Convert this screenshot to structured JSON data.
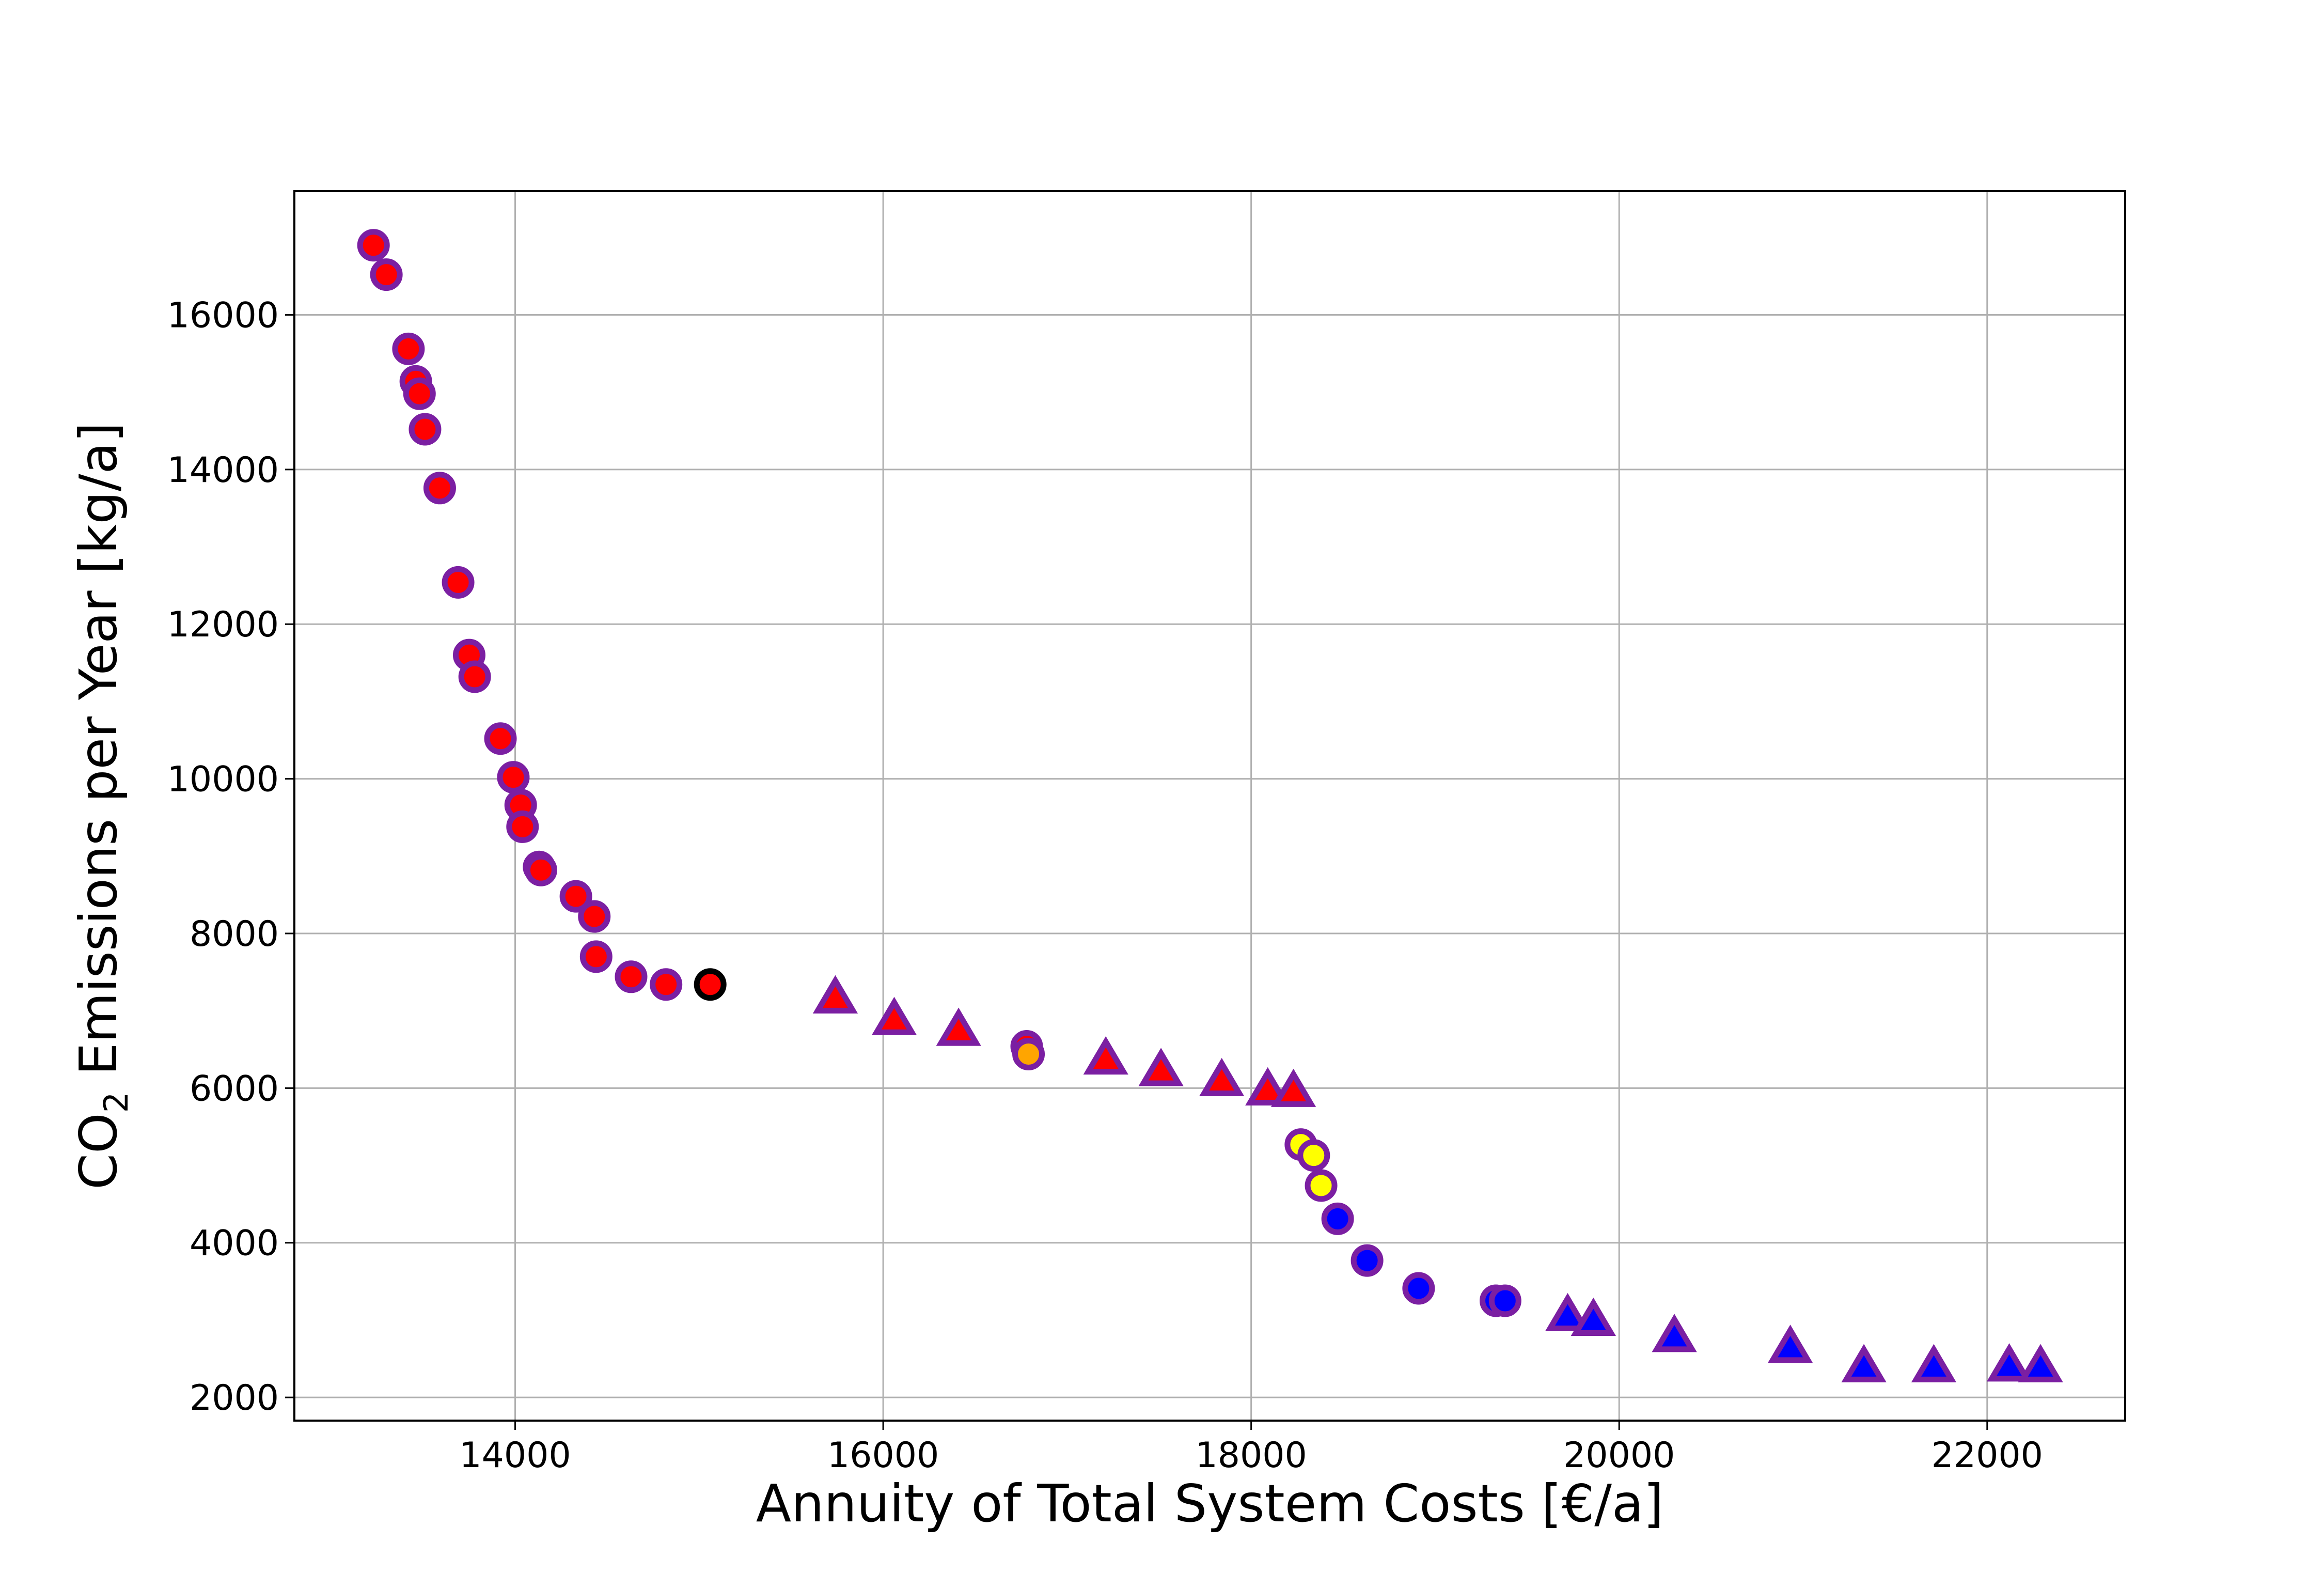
{
  "chart_data": {
    "type": "scatter",
    "xlabel": "Annuity of Total System Costs  [€/a]",
    "ylabel": {
      "prefix": "CO",
      "subscript": "2",
      "suffix": " Emissions per Year [kg/a]"
    },
    "xlim": [
      12800,
      22750
    ],
    "ylim": [
      1700,
      17600
    ],
    "xticks": [
      "14000",
      "16000",
      "18000",
      "20000",
      "22000"
    ],
    "yticks": [
      "2000",
      "4000",
      "6000",
      "8000",
      "10000",
      "12000",
      "14000",
      "16000"
    ],
    "grid": true,
    "edge_color": "#7b1fa2",
    "series": [
      {
        "marker": "circle",
        "fill": "#ff0000",
        "points": [
          [
            13230,
            16900
          ],
          [
            13300,
            16520
          ],
          [
            13420,
            15560
          ],
          [
            13460,
            15140
          ],
          [
            13480,
            14980
          ],
          [
            13510,
            14520
          ],
          [
            13590,
            13760
          ],
          [
            13690,
            12540
          ],
          [
            13750,
            11600
          ],
          [
            13780,
            11320
          ],
          [
            13920,
            10520
          ],
          [
            13990,
            10020
          ],
          [
            14030,
            9660
          ],
          [
            14040,
            9380
          ],
          [
            14130,
            8860
          ],
          [
            14140,
            8820
          ],
          [
            14330,
            8480
          ],
          [
            14430,
            8220
          ],
          [
            14440,
            7700
          ],
          [
            14630,
            7440
          ],
          [
            14820,
            7340
          ]
        ]
      },
      {
        "marker": "circle",
        "fill": "#ff0000",
        "edge": "#000000",
        "points": [
          [
            15060,
            7340
          ]
        ]
      },
      {
        "marker": "triangle",
        "fill": "#ff0000",
        "points": [
          [
            15740,
            7150
          ],
          [
            16060,
            6870
          ],
          [
            16410,
            6730
          ],
          [
            17210,
            6360
          ],
          [
            17510,
            6210
          ],
          [
            17840,
            6080
          ],
          [
            18090,
            5960
          ],
          [
            18230,
            5940
          ]
        ]
      },
      {
        "marker": "circle",
        "fill": "#ff0000",
        "points": [
          [
            16780,
            6540
          ]
        ]
      },
      {
        "marker": "circle",
        "fill": "#ffa500",
        "points": [
          [
            16790,
            6440
          ]
        ]
      },
      {
        "marker": "circle",
        "fill": "#ffff00",
        "points": [
          [
            18270,
            5270
          ],
          [
            18340,
            5130
          ],
          [
            18380,
            4740
          ]
        ]
      },
      {
        "marker": "circle",
        "fill": "#0000ff",
        "points": [
          [
            18470,
            4310
          ],
          [
            18630,
            3770
          ],
          [
            18910,
            3410
          ],
          [
            19330,
            3250
          ],
          [
            19380,
            3250
          ]
        ]
      },
      {
        "marker": "triangle",
        "fill": "#0000ff",
        "points": [
          [
            19720,
            3040
          ],
          [
            19860,
            2980
          ],
          [
            20300,
            2770
          ],
          [
            20930,
            2630
          ],
          [
            21330,
            2380
          ],
          [
            21710,
            2380
          ],
          [
            22120,
            2390
          ],
          [
            22290,
            2380
          ]
        ]
      }
    ]
  }
}
